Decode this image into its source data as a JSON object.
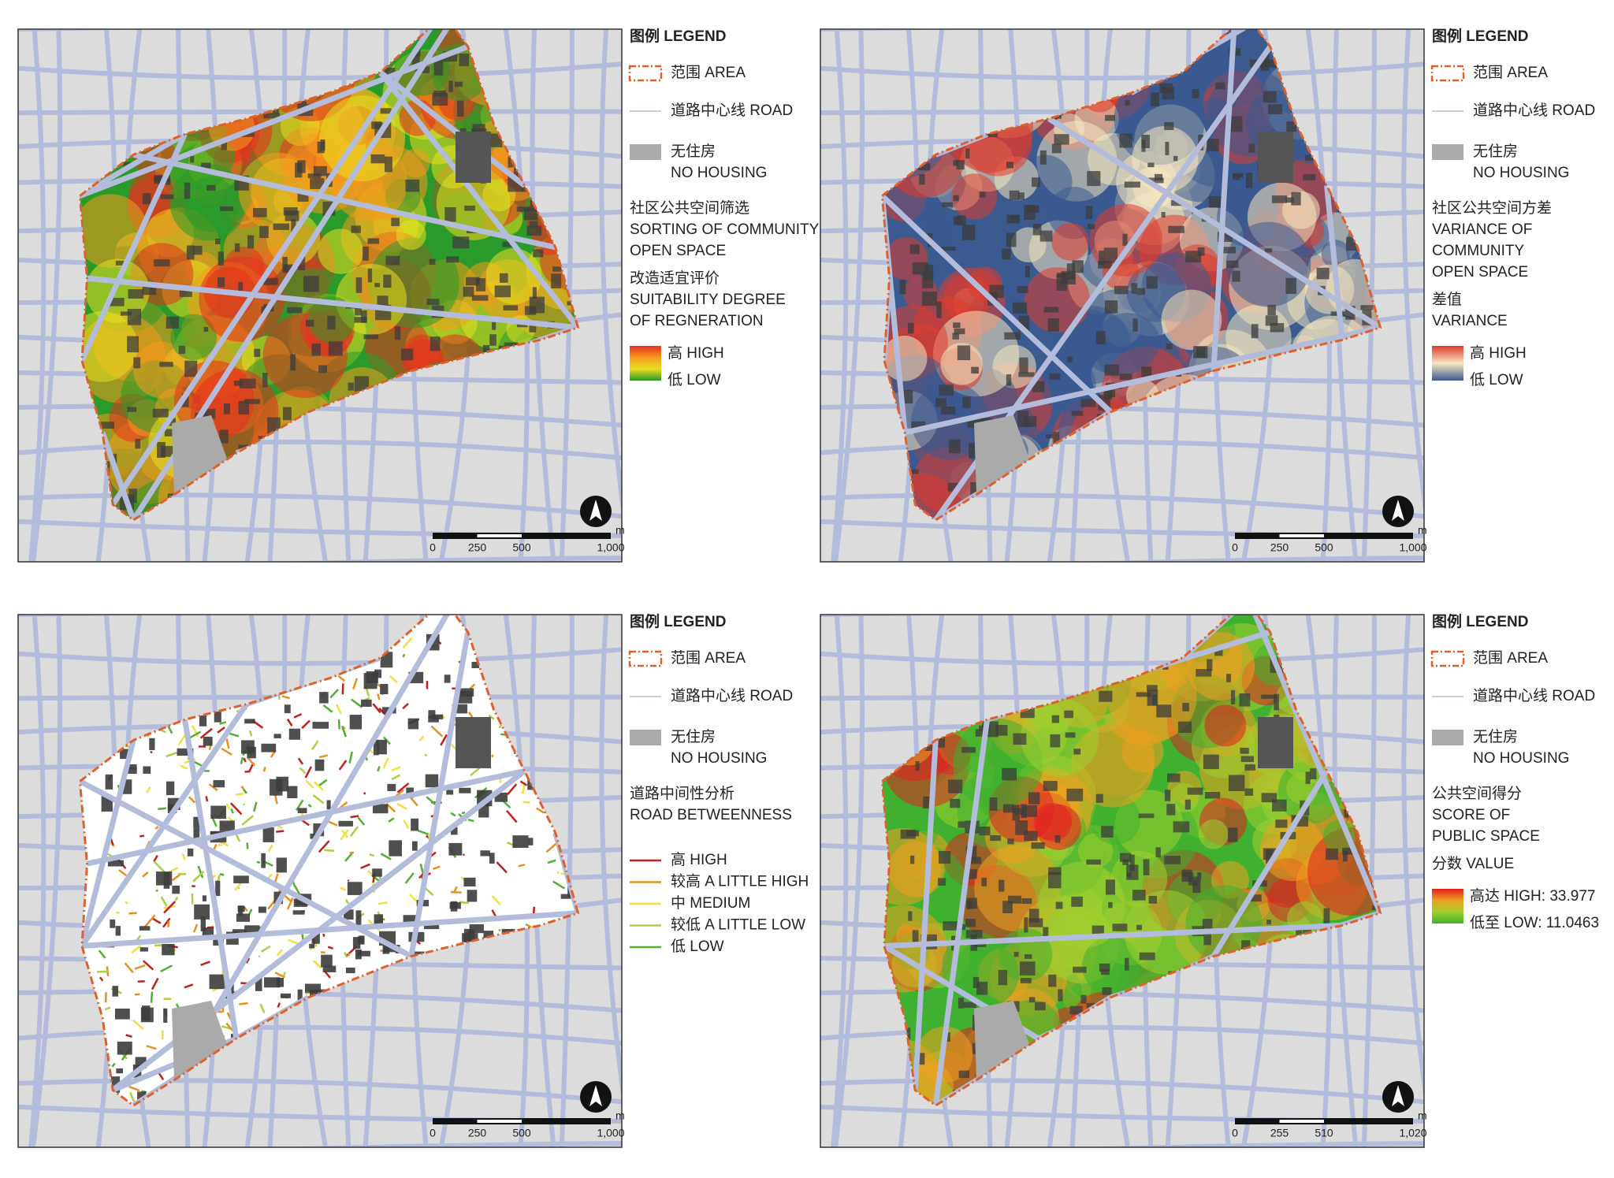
{
  "panels": [
    {
      "legend": {
        "title": "图例 LEGEND",
        "area": "范围 AREA",
        "road": "道路中心线 ROAD",
        "no_housing": [
          "无住房",
          "NO HOUSING"
        ],
        "heading": [
          "社区公共空间筛选",
          "SORTING OF COMMUNITY",
          "OPEN SPACE"
        ],
        "subheading": [
          "改造适宜评价",
          "SUITABILITY DEGREE",
          "OF REGNERATION"
        ],
        "ramp": {
          "high": "高 HIGH",
          "low": "低 LOW",
          "colors": [
            "#e8301e",
            "#f59a1e",
            "#e8e020",
            "#2a9a2a"
          ]
        }
      },
      "scale": {
        "ticks": [
          "0",
          "250",
          "500",
          "1,000"
        ],
        "unit": "m"
      }
    },
    {
      "legend": {
        "title": "图例 LEGEND",
        "area": "范围 AREA",
        "road": "道路中心线 ROAD",
        "no_housing": [
          "无住房",
          "NO HOUSING"
        ],
        "heading": [
          "社区公共空间方差",
          "VARIANCE OF",
          "COMMUNITY",
          "OPEN SPACE"
        ],
        "subheading": [
          "差值",
          "VARIANCE"
        ],
        "ramp": {
          "high": "高 HIGH",
          "low": "低 LOW",
          "colors": [
            "#e03a2a",
            "#f5e8c0",
            "#3a5a90"
          ]
        }
      },
      "scale": {
        "ticks": [
          "0",
          "250",
          "500",
          "1,000"
        ],
        "unit": "m"
      }
    },
    {
      "legend": {
        "title": "图例 LEGEND",
        "area": "范围 AREA",
        "road": "道路中心线 ROAD",
        "no_housing": [
          "无住房",
          "NO HOUSING"
        ],
        "heading": [
          "道路中间性分析",
          "ROAD BETWEENNESS"
        ],
        "classes": [
          {
            "label": "高 HIGH",
            "color": "#c0201e"
          },
          {
            "label": "较高 A LITTLE HIGH",
            "color": "#e8901e"
          },
          {
            "label": "中 MEDIUM",
            "color": "#f0e040"
          },
          {
            "label": "较低 A LITTLE LOW",
            "color": "#a8d040"
          },
          {
            "label": "低 LOW",
            "color": "#50b030"
          }
        ]
      },
      "scale": {
        "ticks": [
          "0",
          "250",
          "500",
          "1,000"
        ],
        "unit": "m"
      }
    },
    {
      "legend": {
        "title": "图例 LEGEND",
        "area": "范围 AREA",
        "road": "道路中心线 ROAD",
        "no_housing": [
          "无住房",
          "NO HOUSING"
        ],
        "heading": [
          "公共空间得分",
          "SCORE OF",
          "PUBLIC SPACE"
        ],
        "subheading": [
          "分数 VALUE"
        ],
        "ramp": {
          "high": "高达 HIGH: 33.977",
          "low": "低至 LOW: 11.0463",
          "colors": [
            "#e02020",
            "#f0a020",
            "#a0d030",
            "#40b030"
          ]
        }
      },
      "scale": {
        "ticks": [
          "0",
          "255",
          "510",
          "1,020"
        ],
        "unit": "m"
      }
    }
  ]
}
